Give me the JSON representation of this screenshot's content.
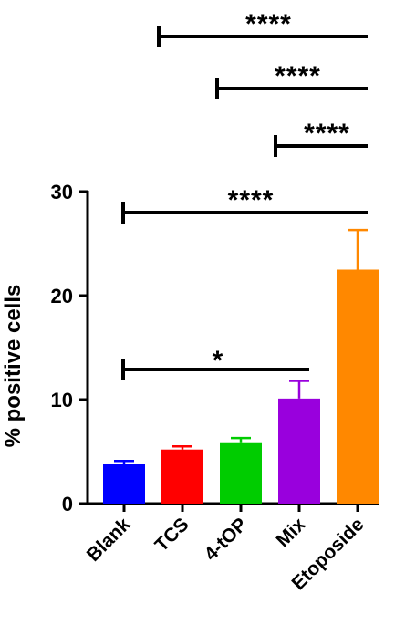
{
  "chart_data": {
    "type": "bar",
    "title": "",
    "xlabel": "",
    "ylabel": "% positive cells",
    "ylim": [
      0,
      30
    ],
    "yticks": [
      0,
      10,
      20,
      30
    ],
    "grid": false,
    "categories": [
      "Blank",
      "TCS",
      "4-tOP",
      "Mix",
      "Etoposide"
    ],
    "values": [
      3.8,
      5.2,
      5.9,
      10.1,
      22.5
    ],
    "errors": [
      0.3,
      0.3,
      0.4,
      1.7,
      3.8
    ],
    "colors": [
      "#0000ff",
      "#ff0000",
      "#00cc00",
      "#9900dd",
      "#ff8800"
    ],
    "significance": [
      {
        "from": "TCS",
        "to": "Etoposide",
        "label": "****"
      },
      {
        "from": "4-tOP",
        "to": "Etoposide",
        "label": "****"
      },
      {
        "from": "Mix",
        "to": "Etoposide",
        "label": "****"
      },
      {
        "from": "Blank",
        "to": "Etoposide",
        "label": "****"
      },
      {
        "from": "Blank",
        "to": "Mix",
        "label": "*"
      }
    ]
  }
}
